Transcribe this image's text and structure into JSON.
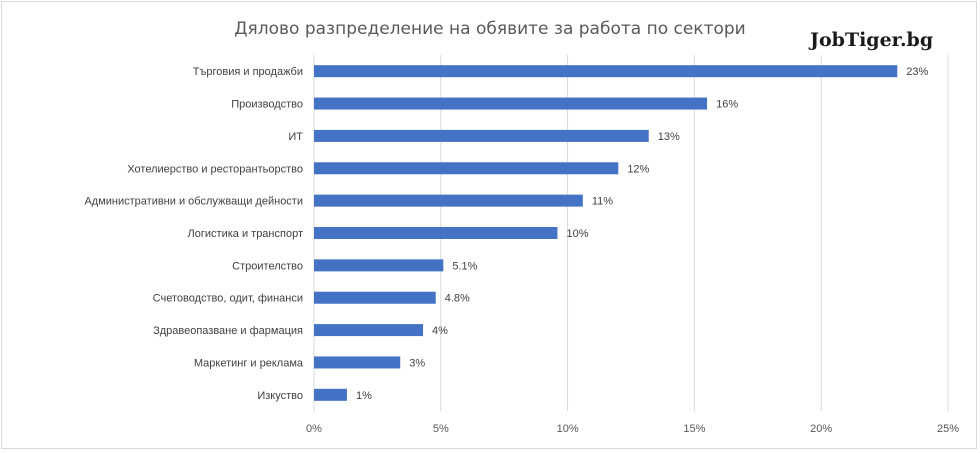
{
  "chart_data": {
    "type": "bar",
    "orientation": "horizontal",
    "title": "Дялово разпределение на обявите за работа по сектори",
    "brand": "JobTiger.bg",
    "categories": [
      "Търговия и продажби",
      "Производство",
      "ИТ",
      "Хотелиерство и ресторантьорство",
      "Административни и обслужващи дейности",
      "Логистика и транспорт",
      "Строителство",
      "Счетоводство, одит, финанси",
      "Здравеопазване и фармация",
      "Маркетинг и реклама",
      "Изкуство"
    ],
    "values": [
      23,
      15.5,
      13.2,
      12,
      10.6,
      9.6,
      5.1,
      4.8,
      4.3,
      3.4,
      1.3
    ],
    "data_labels": [
      "23%",
      "16%",
      "13%",
      "12%",
      "11%",
      "10%",
      "5.1%",
      "4.8%",
      "4%",
      "3%",
      "1%"
    ],
    "xlim": [
      0,
      25
    ],
    "x_ticks": [
      0,
      5,
      10,
      15,
      20,
      25
    ],
    "x_tick_labels": [
      "0%",
      "5%",
      "10%",
      "15%",
      "20%",
      "25%"
    ],
    "gridlines": true,
    "bar_color": "#4472c4",
    "grid_color": "#d9d9d9"
  }
}
